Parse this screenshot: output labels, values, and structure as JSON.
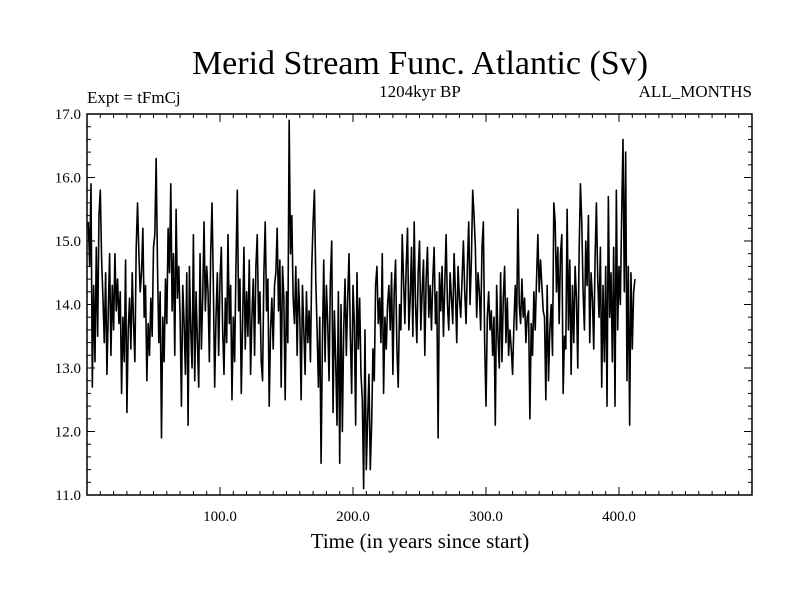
{
  "chart_data": {
    "type": "line",
    "title": "Merid Stream Func. Atlantic (Sv)",
    "subtitle_left": "Expt = tFmCj",
    "subtitle_center": "1204kyr BP",
    "subtitle_right": "ALL_MONTHS",
    "xlabel": "Time (in years since start)",
    "ylabel": "",
    "xlim": [
      0,
      500
    ],
    "ylim": [
      11.0,
      17.0
    ],
    "xticks": [
      100,
      200,
      300,
      400
    ],
    "xtick_labels": [
      "100.0",
      "200.0",
      "300.0",
      "400.0"
    ],
    "yticks": [
      11,
      12,
      13,
      14,
      15,
      16,
      17
    ],
    "ytick_labels": [
      "11.0",
      "12.0",
      "13.0",
      "14.0",
      "15.0",
      "16.0",
      "17.0"
    ],
    "line_color": "#000000",
    "series": [
      {
        "name": "Merid Stream Func. Atlantic",
        "x_start": 1,
        "x_step": 1,
        "values": [
          15.3,
          14.6,
          15.9,
          12.7,
          14.3,
          13.1,
          14.9,
          13.5,
          15.4,
          15.8,
          14.7,
          14.1,
          13.4,
          14.5,
          12.9,
          13.9,
          14.8,
          13.2,
          14.3,
          13.6,
          14.8,
          13.9,
          14.4,
          13.7,
          14.2,
          12.6,
          13.8,
          13.1,
          14.7,
          12.3,
          13.6,
          14.1,
          13.3,
          14.5,
          13.7,
          13.1,
          14.9,
          15.6,
          14.8,
          14.2,
          14.5,
          15.2,
          13.8,
          14.3,
          12.8,
          13.7,
          13.2,
          14.1,
          13.5,
          14.9,
          15.1,
          16.3,
          14.6,
          13.4,
          14.2,
          11.9,
          13.8,
          13.1,
          14.4,
          13.7,
          15.2,
          14.5,
          15.9,
          13.9,
          14.8,
          13.2,
          15.5,
          14.1,
          14.6,
          13.8,
          12.4,
          14.3,
          13.7,
          12.9,
          14.5,
          12.1,
          14.6,
          13.6,
          13.0,
          15.1,
          12.8,
          14.2,
          13.4,
          12.7,
          14.8,
          13.3,
          14.1,
          15.3,
          13.9,
          14.6,
          14.2,
          13.1,
          14.8,
          15.6,
          14.3,
          12.7,
          13.8,
          14.5,
          13.2,
          14.4,
          14.9,
          13.6,
          12.9,
          14.1,
          13.4,
          15.1,
          13.7,
          14.3,
          12.5,
          13.8,
          13.1,
          14.6,
          15.8,
          13.9,
          14.4,
          12.6,
          13.7,
          14.9,
          13.3,
          14.2,
          13.5,
          14.7,
          12.9,
          13.8,
          14.4,
          13.2,
          14.6,
          15.1,
          13.7,
          14.2,
          13.1,
          12.8,
          14.5,
          15.3,
          13.9,
          14.4,
          12.4,
          13.6,
          14.1,
          13.3,
          14.3,
          14.5,
          15.2,
          13.9,
          14.7,
          12.7,
          14.6,
          14.1,
          12.5,
          14.2,
          13.4,
          16.9,
          14.8,
          15.4,
          14.1,
          13.7,
          14.6,
          13.2,
          14.4,
          13.8,
          12.5,
          14.3,
          13.6,
          12.9,
          14.2,
          13.4,
          13.9,
          13.1,
          14.6,
          15.3,
          15.8,
          14.4,
          13.6,
          12.7,
          13.8,
          11.5,
          13.4,
          14.7,
          13.1,
          14.3,
          13.7,
          12.8,
          14.4,
          15.0,
          12.3,
          13.9,
          13.1,
          12.1,
          14.2,
          11.5,
          14.0,
          12.0,
          13.6,
          14.4,
          13.2,
          14.1,
          14.8,
          13.5,
          12.6,
          14.3,
          13.7,
          12.1,
          14.5,
          13.3,
          14.1,
          12.9,
          12.5,
          11.1,
          13.6,
          11.4,
          12.2,
          12.9,
          11.4,
          12.1,
          13.3,
          12.8,
          14.3,
          14.6,
          13.7,
          14.1,
          13.4,
          14.8,
          12.6,
          13.8,
          13.3,
          14.0,
          14.3,
          13.6,
          14.5,
          12.9,
          14.2,
          14.7,
          13.3,
          12.7,
          14.0,
          13.6,
          15.1,
          14.4,
          13.7,
          14.6,
          15.2,
          13.6,
          14.1,
          14.9,
          13.5,
          15.3,
          14.0,
          13.4,
          14.5,
          15.0,
          13.6,
          14.2,
          14.7,
          13.2,
          14.4,
          14.9,
          13.8,
          14.3,
          13.6,
          14.4,
          14.9,
          13.7,
          14.2,
          11.9,
          14.5,
          13.9,
          14.6,
          13.5,
          14.3,
          15.1,
          14.0,
          13.6,
          14.5,
          14.1,
          13.7,
          14.8,
          14.2,
          13.4,
          14.6,
          14.1,
          13.8,
          14.4,
          15.0,
          14.2,
          13.7,
          14.6,
          15.3,
          14.0,
          14.7,
          15.8,
          15.4,
          14.9,
          13.8,
          14.5,
          14.2,
          13.6,
          14.9,
          15.3,
          13.4,
          12.4,
          13.8,
          14.2,
          13.6,
          13.9,
          13.2,
          13.8,
          12.1,
          14.3,
          13.5,
          13.0,
          14.5,
          13.1,
          14.1,
          14.6,
          13.4,
          14.1,
          13.2,
          13.6,
          13.3,
          12.9,
          13.7,
          14.3,
          13.6,
          15.5,
          14.0,
          13.7,
          14.4,
          13.8,
          14.1,
          13.4,
          13.8,
          13.9,
          12.2,
          13.7,
          13.2,
          14.2,
          13.6,
          14.4,
          15.1,
          14.2,
          14.7,
          14.3,
          13.9,
          13.8,
          12.5,
          14.3,
          12.8,
          13.6,
          14.0,
          13.2,
          15.6,
          15.3,
          14.2,
          14.9,
          13.7,
          14.8,
          15.1,
          12.6,
          13.5,
          13.3,
          15.5,
          13.6,
          14.7,
          12.9,
          14.3,
          13.4,
          14.6,
          14.1,
          13.0,
          14.8,
          15.9,
          15.3,
          14.2,
          13.6,
          15.0,
          14.3,
          15.4,
          13.4,
          14.5,
          14.1,
          13.3,
          14.7,
          15.6,
          14.4,
          13.8,
          14.9,
          12.7,
          14.3,
          13.1,
          14.6,
          12.4,
          15.7,
          13.8,
          14.5,
          13.1,
          14.9,
          12.4,
          15.8,
          13.6,
          14.6,
          14.0,
          15.4,
          16.6,
          14.2,
          16.4,
          12.8,
          14.6,
          12.1,
          14.5,
          13.3,
          14.2,
          14.4
        ]
      }
    ]
  }
}
